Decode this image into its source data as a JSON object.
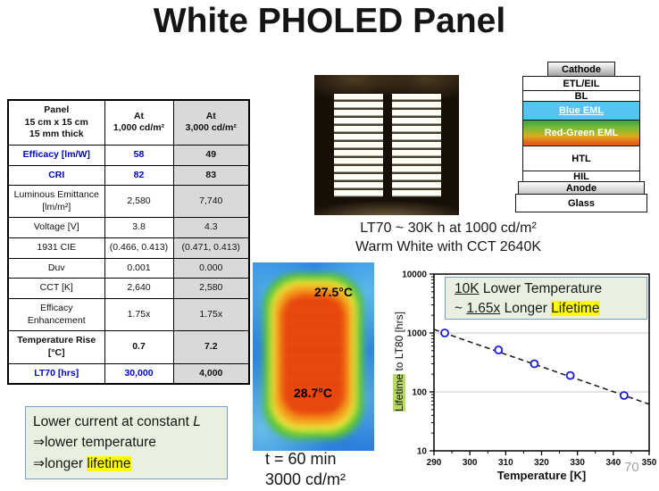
{
  "title": "White PHOLED Panel",
  "page_number": "70",
  "table": {
    "header": {
      "panel_l1": "Panel",
      "panel_l2": "15 cm x 15 cm",
      "panel_l3": "15 mm thick",
      "at1_l1": "At",
      "at1_l2": "1,000 cd/m²",
      "at2_l1": "At",
      "at2_l2": "3,000 cd/m²"
    },
    "rows": [
      {
        "label": "Efficacy [lm/W]",
        "at1000": "58",
        "at3000": "49"
      },
      {
        "label": "CRI",
        "at1000": "82",
        "at3000": "83"
      },
      {
        "label": "Luminous Emittance [lm/m²]",
        "at1000": "2,580",
        "at3000": "7,740"
      },
      {
        "label": "Voltage [V]",
        "at1000": "3.8",
        "at3000": "4.3"
      },
      {
        "label": "1931 CIE",
        "at1000": "(0.466, 0.413)",
        "at3000": "(0.471, 0.413)"
      },
      {
        "label": "Duv",
        "at1000": "0.001",
        "at3000": "0.000"
      },
      {
        "label": "CCT [K]",
        "at1000": "2,640",
        "at3000": "2,580"
      },
      {
        "label": "Efficacy Enhancement",
        "at1000": "1.75x",
        "at3000": "1.75x"
      },
      {
        "label": "Temperature Rise [°C]",
        "at1000": "0.7",
        "at3000": "7.2"
      },
      {
        "label": "LT70 [hrs]",
        "at1000": "30,000",
        "at3000": "4,000"
      }
    ]
  },
  "panel_photo": {
    "caption_l1": "LT70 ~ 30K h at 1000 cd/m²",
    "caption_l2": "Warm White with CCT 2640K"
  },
  "stack": {
    "layers": [
      "Cathode",
      "ETL/EIL",
      "BL",
      "Blue EML",
      "Red-Green EML",
      "HTL",
      "HIL",
      "Anode",
      "Glass"
    ]
  },
  "thermal": {
    "label_top": "27.5°C",
    "label_bottom": "28.7°C",
    "caption_l1": "t = 60 min",
    "caption_l2": "3000 cd/m²"
  },
  "note_box": {
    "line1_text": "Lower current at constant ",
    "line1_italic": "L",
    "line2": "⇒lower temperature",
    "line3_prefix": "⇒longer ",
    "line3_highlight": "lifetime"
  },
  "chart_data": {
    "type": "scatter",
    "xlabel": "Temperature [K]",
    "ylabel_highlight": "Lifetime",
    "ylabel_rest": " to LT80 [hrs]",
    "x": [
      293,
      308,
      318,
      328,
      343
    ],
    "y": [
      1000,
      515,
      300,
      190,
      87
    ],
    "trendline": {
      "x1": 290,
      "y1": 1150,
      "x2": 350,
      "y2": 62
    },
    "xlim": [
      290,
      350
    ],
    "ylim": [
      10,
      10000
    ],
    "yscale": "log",
    "xticks": [
      290,
      300,
      310,
      320,
      330,
      340,
      350
    ],
    "xminor": [
      295,
      305,
      315,
      325,
      335,
      345
    ],
    "yticks": [
      10,
      100,
      1000,
      10000
    ],
    "grid_y": [
      100,
      1000
    ],
    "marker_color": "#1a1ae0",
    "legend_position": "none",
    "annotation": {
      "line1_underline": "10K",
      "line1_rest": " Lower Temperature",
      "line2_prefix": "~ ",
      "line2_underline": "1.65x",
      "line2_mid": " Longer ",
      "line2_highlight": "Lifetime"
    }
  },
  "colors": {
    "accent_blue_text": "#0000cc",
    "table_gray_bg": "#d9d9d9",
    "green_box_bg": "#e9f0e1",
    "box_border_blue": "#7b9cc9",
    "yellow_highlight": "#ffff00",
    "green_highlight": "#b8d96a",
    "blue_eml": "#55c4f1"
  }
}
